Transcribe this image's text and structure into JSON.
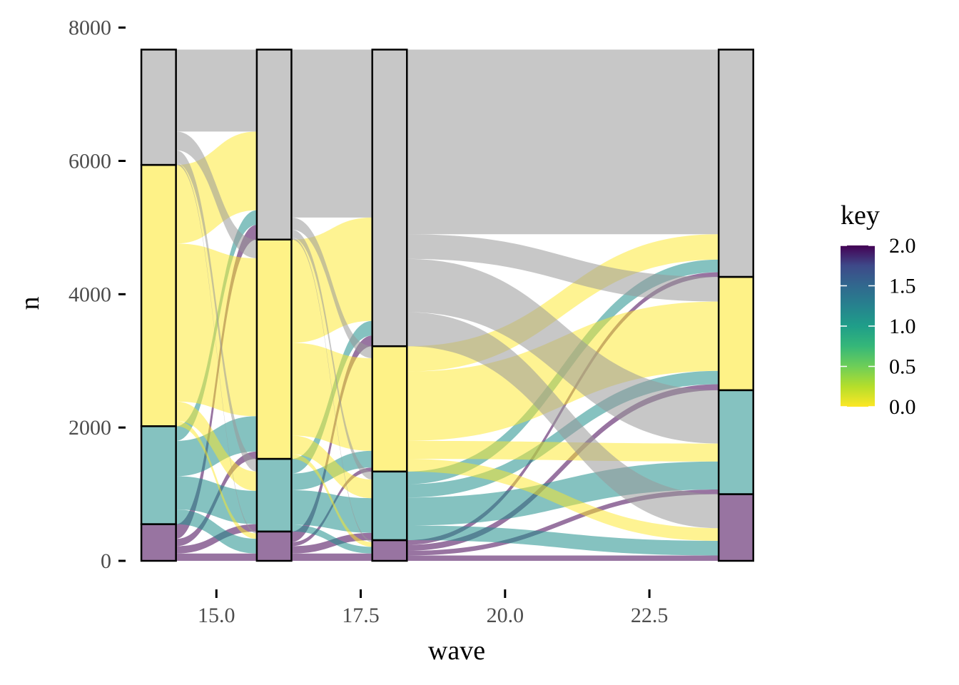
{
  "chart_data": {
    "type": "alluvial",
    "title": "",
    "xlabel": "wave",
    "ylabel": "n",
    "x_ticks": [
      15.0,
      17.5,
      20.0,
      22.5
    ],
    "x_tick_labels": [
      "15.0",
      "17.5",
      "20.0",
      "22.5"
    ],
    "y_ticks": [
      0,
      2000,
      4000,
      6000,
      8000
    ],
    "y_tick_labels": [
      "0",
      "2000",
      "4000",
      "6000",
      "8000"
    ],
    "xlim": [
      13.6,
      24.6
    ],
    "ylim": [
      -150,
      8200
    ],
    "grid": false,
    "waves": [
      14,
      16,
      18,
      24
    ],
    "stack_order": [
      "2",
      "1",
      "0",
      "NA"
    ],
    "colors": {
      "0": "#FDE725",
      "1": "#21908C",
      "2": "#440154",
      "NA": "#999999"
    },
    "strata": [
      {
        "wave": 14,
        "segments": [
          {
            "key": "2",
            "n": 550
          },
          {
            "key": "1",
            "n": 1470
          },
          {
            "key": "0",
            "n": 3920
          },
          {
            "key": "NA",
            "n": 1730
          }
        ]
      },
      {
        "wave": 16,
        "segments": [
          {
            "key": "2",
            "n": 440
          },
          {
            "key": "1",
            "n": 1090
          },
          {
            "key": "0",
            "n": 3290
          },
          {
            "key": "NA",
            "n": 2850
          }
        ]
      },
      {
        "wave": 18,
        "segments": [
          {
            "key": "2",
            "n": 310
          },
          {
            "key": "1",
            "n": 1030
          },
          {
            "key": "0",
            "n": 1880
          },
          {
            "key": "NA",
            "n": 4450
          }
        ]
      },
      {
        "wave": 24,
        "segments": [
          {
            "key": "2",
            "n": 1000
          },
          {
            "key": "1",
            "n": 1560
          },
          {
            "key": "0",
            "n": 1700
          },
          {
            "key": "NA",
            "n": 3410
          }
        ]
      }
    ],
    "flows": [
      {
        "from": 14,
        "to": 16,
        "src_key": "2",
        "dst_key": "2",
        "n": 110
      },
      {
        "from": 14,
        "to": 16,
        "src_key": "2",
        "dst_key": "1",
        "n": 110
      },
      {
        "from": 14,
        "to": 16,
        "src_key": "2",
        "dst_key": "0",
        "n": 110
      },
      {
        "from": 14,
        "to": 16,
        "src_key": "2",
        "dst_key": "NA",
        "n": 220
      },
      {
        "from": 14,
        "to": 16,
        "src_key": "1",
        "dst_key": "2",
        "n": 220
      },
      {
        "from": 14,
        "to": 16,
        "src_key": "1",
        "dst_key": "1",
        "n": 500
      },
      {
        "from": 14,
        "to": 16,
        "src_key": "1",
        "dst_key": "0",
        "n": 530
      },
      {
        "from": 14,
        "to": 16,
        "src_key": "1",
        "dst_key": "NA",
        "n": 220
      },
      {
        "from": 14,
        "to": 16,
        "src_key": "0",
        "dst_key": "2",
        "n": 80
      },
      {
        "from": 14,
        "to": 16,
        "src_key": "0",
        "dst_key": "1",
        "n": 290
      },
      {
        "from": 14,
        "to": 16,
        "src_key": "0",
        "dst_key": "0",
        "n": 2370
      },
      {
        "from": 14,
        "to": 16,
        "src_key": "0",
        "dst_key": "NA",
        "n": 1180
      },
      {
        "from": 14,
        "to": 16,
        "src_key": "NA",
        "dst_key": "2",
        "n": 30
      },
      {
        "from": 14,
        "to": 16,
        "src_key": "NA",
        "dst_key": "1",
        "n": 190
      },
      {
        "from": 14,
        "to": 16,
        "src_key": "NA",
        "dst_key": "0",
        "n": 280
      },
      {
        "from": 14,
        "to": 16,
        "src_key": "NA",
        "dst_key": "NA",
        "n": 1230
      },
      {
        "from": 16,
        "to": 18,
        "src_key": "2",
        "dst_key": "2",
        "n": 110
      },
      {
        "from": 16,
        "to": 18,
        "src_key": "2",
        "dst_key": "1",
        "n": 110
      },
      {
        "from": 16,
        "to": 18,
        "src_key": "2",
        "dst_key": "0",
        "n": 60
      },
      {
        "from": 16,
        "to": 18,
        "src_key": "2",
        "dst_key": "NA",
        "n": 160
      },
      {
        "from": 16,
        "to": 18,
        "src_key": "1",
        "dst_key": "2",
        "n": 100
      },
      {
        "from": 16,
        "to": 18,
        "src_key": "1",
        "dst_key": "1",
        "n": 520
      },
      {
        "from": 16,
        "to": 18,
        "src_key": "1",
        "dst_key": "0",
        "n": 250
      },
      {
        "from": 16,
        "to": 18,
        "src_key": "1",
        "dst_key": "NA",
        "n": 220
      },
      {
        "from": 16,
        "to": 18,
        "src_key": "0",
        "dst_key": "2",
        "n": 70
      },
      {
        "from": 16,
        "to": 18,
        "src_key": "0",
        "dst_key": "1",
        "n": 280
      },
      {
        "from": 16,
        "to": 18,
        "src_key": "0",
        "dst_key": "0",
        "n": 1390
      },
      {
        "from": 16,
        "to": 18,
        "src_key": "0",
        "dst_key": "NA",
        "n": 1550
      },
      {
        "from": 16,
        "to": 18,
        "src_key": "NA",
        "dst_key": "2",
        "n": 30
      },
      {
        "from": 16,
        "to": 18,
        "src_key": "NA",
        "dst_key": "1",
        "n": 120
      },
      {
        "from": 16,
        "to": 18,
        "src_key": "NA",
        "dst_key": "0",
        "n": 180
      },
      {
        "from": 16,
        "to": 18,
        "src_key": "NA",
        "dst_key": "NA",
        "n": 2520
      },
      {
        "from": 18,
        "to": 24,
        "src_key": "2",
        "dst_key": "2",
        "n": 80
      },
      {
        "from": 18,
        "to": 24,
        "src_key": "2",
        "dst_key": "1",
        "n": 70
      },
      {
        "from": 18,
        "to": 24,
        "src_key": "2",
        "dst_key": "0",
        "n": 90
      },
      {
        "from": 18,
        "to": 24,
        "src_key": "2",
        "dst_key": "NA",
        "n": 70
      },
      {
        "from": 18,
        "to": 24,
        "src_key": "1",
        "dst_key": "2",
        "n": 220
      },
      {
        "from": 18,
        "to": 24,
        "src_key": "1",
        "dst_key": "1",
        "n": 420
      },
      {
        "from": 18,
        "to": 24,
        "src_key": "1",
        "dst_key": "0",
        "n": 200
      },
      {
        "from": 18,
        "to": 24,
        "src_key": "1",
        "dst_key": "NA",
        "n": 190
      },
      {
        "from": 18,
        "to": 24,
        "src_key": "0",
        "dst_key": "2",
        "n": 190
      },
      {
        "from": 18,
        "to": 24,
        "src_key": "0",
        "dst_key": "1",
        "n": 270
      },
      {
        "from": 18,
        "to": 24,
        "src_key": "0",
        "dst_key": "0",
        "n": 1040
      },
      {
        "from": 18,
        "to": 24,
        "src_key": "0",
        "dst_key": "NA",
        "n": 380
      },
      {
        "from": 18,
        "to": 24,
        "src_key": "NA",
        "dst_key": "2",
        "n": 510
      },
      {
        "from": 18,
        "to": 24,
        "src_key": "NA",
        "dst_key": "1",
        "n": 800
      },
      {
        "from": 18,
        "to": 24,
        "src_key": "NA",
        "dst_key": "0",
        "n": 370
      },
      {
        "from": 18,
        "to": 24,
        "src_key": "NA",
        "dst_key": "NA",
        "n": 2770
      }
    ],
    "legend": {
      "title": "key",
      "position": "right",
      "type": "colorbar",
      "ticks": [
        0,
        0.5,
        1.0,
        1.5,
        2.0
      ],
      "tick_labels": [
        "0.0",
        "0.5",
        "1.0",
        "1.5",
        "2.0"
      ],
      "range": [
        0,
        2
      ],
      "palette": "viridis (reversed: 0 = yellow, 2 = purple)"
    }
  }
}
